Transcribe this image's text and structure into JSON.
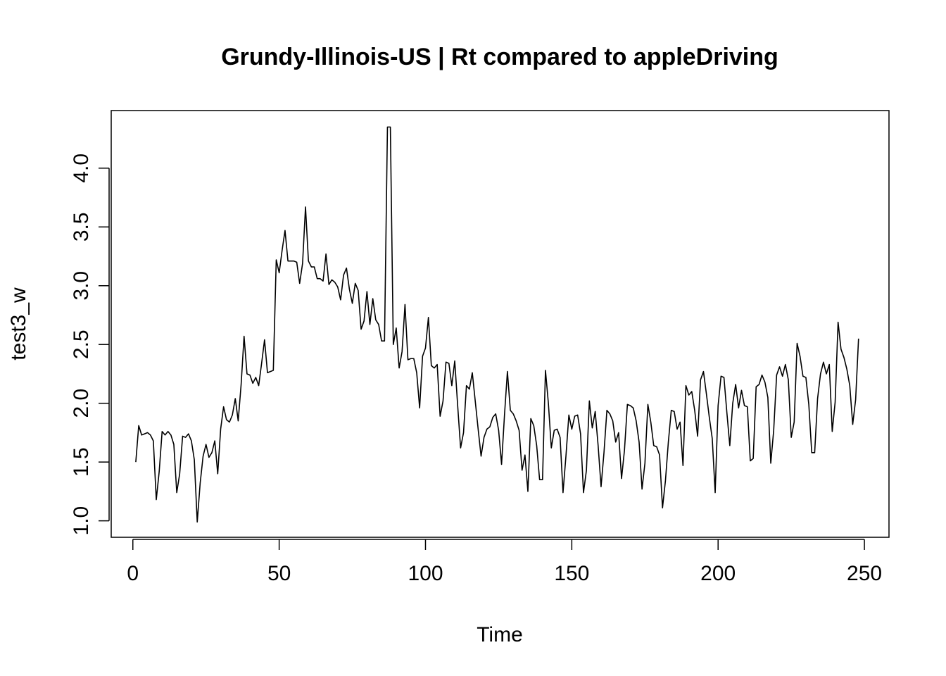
{
  "chart_data": {
    "type": "line",
    "title": "Grundy-Illinois-US | Rt compared to appleDriving",
    "xlabel": "Time",
    "ylabel": "test3_w",
    "xlim": [
      -7.4,
      258.4
    ],
    "ylim": [
      0.86,
      4.49
    ],
    "x_ticks": [
      0,
      50,
      100,
      150,
      200,
      250
    ],
    "y_ticks": [
      1.0,
      1.5,
      2.0,
      2.5,
      3.0,
      3.5,
      4.0
    ],
    "x_tick_labels": [
      "0",
      "50",
      "100",
      "150",
      "200",
      "250"
    ],
    "y_tick_labels": [
      "1.0",
      "1.5",
      "2.0",
      "2.5",
      "3.0",
      "3.5",
      "4.0"
    ],
    "grid": false,
    "legend": "none",
    "line_color": "#000000",
    "series": [
      {
        "x_start": 1,
        "values": [
          1.5,
          1.81,
          1.73,
          1.74,
          1.75,
          1.73,
          1.68,
          1.18,
          1.42,
          1.76,
          1.73,
          1.76,
          1.73,
          1.65,
          1.24,
          1.4,
          1.72,
          1.71,
          1.74,
          1.68,
          1.52,
          0.99,
          1.32,
          1.55,
          1.65,
          1.54,
          1.58,
          1.68,
          1.4,
          1.78,
          1.97,
          1.86,
          1.84,
          1.9,
          2.04,
          1.85,
          2.16,
          2.57,
          2.25,
          2.24,
          2.17,
          2.22,
          2.15,
          2.34,
          2.54,
          2.26,
          2.27,
          2.28,
          3.22,
          3.11,
          3.3,
          3.47,
          3.21,
          3.21,
          3.21,
          3.2,
          3.02,
          3.19,
          3.67,
          3.21,
          3.16,
          3.16,
          3.06,
          3.06,
          3.04,
          3.27,
          3.01,
          3.05,
          3.03,
          2.99,
          2.88,
          3.09,
          3.15,
          2.97,
          2.85,
          3.02,
          2.96,
          2.63,
          2.7,
          2.95,
          2.67,
          2.89,
          2.71,
          2.67,
          2.53,
          2.53,
          4.35,
          4.35,
          2.5,
          2.64,
          2.3,
          2.44,
          2.84,
          2.37,
          2.38,
          2.38,
          2.26,
          1.96,
          2.4,
          2.47,
          2.73,
          2.32,
          2.3,
          2.33,
          1.89,
          2.02,
          2.35,
          2.34,
          2.15,
          2.36,
          1.98,
          1.62,
          1.75,
          2.15,
          2.12,
          2.26,
          2.02,
          1.78,
          1.55,
          1.71,
          1.78,
          1.8,
          1.88,
          1.91,
          1.77,
          1.48,
          1.9,
          2.27,
          1.94,
          1.91,
          1.85,
          1.77,
          1.43,
          1.56,
          1.25,
          1.87,
          1.81,
          1.64,
          1.35,
          1.35,
          2.28,
          2.0,
          1.62,
          1.77,
          1.78,
          1.71,
          1.24,
          1.55,
          1.9,
          1.78,
          1.89,
          1.9,
          1.74,
          1.24,
          1.43,
          2.02,
          1.79,
          1.93,
          1.64,
          1.29,
          1.58,
          1.94,
          1.91,
          1.85,
          1.67,
          1.75,
          1.36,
          1.6,
          1.99,
          1.98,
          1.96,
          1.85,
          1.67,
          1.27,
          1.49,
          1.99,
          1.84,
          1.64,
          1.63,
          1.56,
          1.11,
          1.34,
          1.67,
          1.94,
          1.93,
          1.78,
          1.84,
          1.47,
          2.15,
          2.07,
          2.1,
          1.94,
          1.72,
          2.2,
          2.27,
          2.08,
          1.88,
          1.7,
          1.24,
          1.98,
          2.23,
          2.22,
          1.92,
          1.64,
          2.0,
          2.16,
          1.96,
          2.11,
          1.98,
          1.97,
          1.51,
          1.53,
          2.14,
          2.16,
          2.24,
          2.18,
          2.05,
          1.49,
          1.77,
          2.24,
          2.31,
          2.23,
          2.33,
          2.2,
          1.71,
          1.84,
          2.51,
          2.4,
          2.23,
          2.22,
          1.99,
          1.58,
          1.58,
          2.04,
          2.25,
          2.35,
          2.25,
          2.33,
          1.76,
          2.01,
          2.69,
          2.46,
          2.39,
          2.29,
          2.15,
          1.82,
          2.03,
          2.55
        ]
      }
    ]
  }
}
